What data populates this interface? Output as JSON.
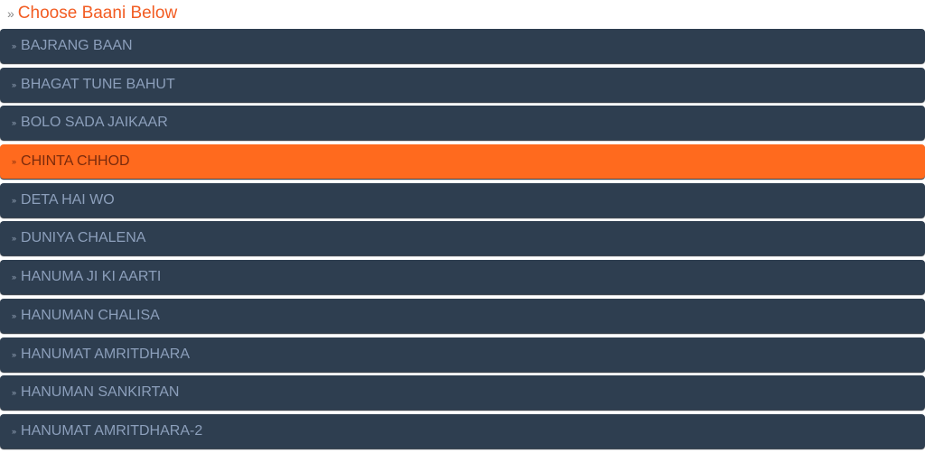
{
  "header": {
    "title": "Choose Baani Below",
    "icon": "double-chevron-right-icon"
  },
  "colors": {
    "item_bg": "#2e3e50",
    "active_bg": "#ff6a1e",
    "title": "#f25c22"
  },
  "items": [
    {
      "label": "BAJRANG BAAN",
      "active": false
    },
    {
      "label": "BHAGAT TUNE BAHUT",
      "active": false
    },
    {
      "label": "BOLO SADA JAIKAAR",
      "active": false
    },
    {
      "label": "CHINTA CHHOD",
      "active": true
    },
    {
      "label": "DETA HAI WO",
      "active": false
    },
    {
      "label": "DUNIYA CHALENA",
      "active": false
    },
    {
      "label": "HANUMA JI KI AARTI",
      "active": false
    },
    {
      "label": "HANUMAN CHALISA",
      "active": false
    },
    {
      "label": "HANUMAT AMRITDHARA",
      "active": false
    },
    {
      "label": "HANUMAN SANKIRTAN",
      "active": false
    },
    {
      "label": "HANUMAT AMRITDHARA-2",
      "active": false
    }
  ]
}
